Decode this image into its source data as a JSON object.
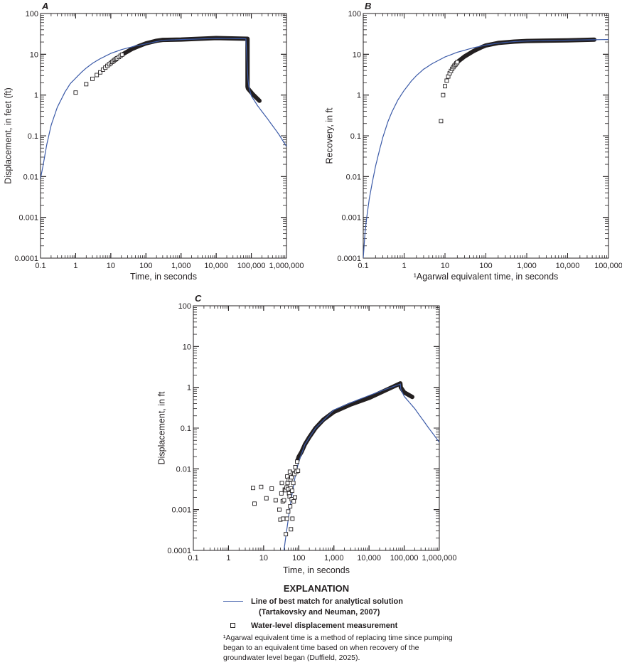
{
  "colors": {
    "model_line": "#3b5aa8",
    "data_marker": "#231f20",
    "axis": "#231f20"
  },
  "chart_data": [
    {
      "panel": "A",
      "type": "scatter",
      "title": "",
      "xlabel": "Time, in seconds",
      "ylabel": "Displacement, in feet (ft)",
      "xscale": "log",
      "yscale": "log",
      "xlim": [
        0.1,
        1000000
      ],
      "ylim": [
        0.0001,
        100
      ],
      "xticks": [
        "0.1",
        "1",
        "10",
        "100",
        "1,000",
        "10,000",
        "100,000",
        "1,000,000"
      ],
      "yticks": [
        "0.0001",
        "0.001",
        "0.01",
        "0.1",
        "1",
        "10",
        "100"
      ],
      "grid": false,
      "series": [
        {
          "name": "Line of best match for analytical solution (Tartakovsky and Neuman, 2007)",
          "kind": "line",
          "x": [
            0.1,
            0.12,
            0.15,
            0.2,
            0.3,
            0.5,
            0.7,
            1,
            1.5,
            2,
            3,
            5,
            10,
            20,
            50,
            100,
            200,
            300,
            1000,
            10000,
            70000,
            80000,
            85000,
            100000,
            150000,
            300000,
            600000,
            1000000
          ],
          "y": [
            0.009,
            0.02,
            0.06,
            0.18,
            0.5,
            1.2,
            1.9,
            2.6,
            3.7,
            4.6,
            6.0,
            7.8,
            10.5,
            13.0,
            16.0,
            18.0,
            20.5,
            22.0,
            23.0,
            24.5,
            24.0,
            2.5,
            1.6,
            0.95,
            0.55,
            0.25,
            0.11,
            0.055
          ]
        },
        {
          "name": "Water-level displacement measurement",
          "kind": "markers",
          "x": [
            1,
            2,
            3,
            4,
            5,
            6,
            7,
            8,
            9,
            10,
            11,
            12,
            13,
            14,
            15,
            17,
            19,
            21
          ],
          "y": [
            1.15,
            1.85,
            2.5,
            3.1,
            3.6,
            4.2,
            4.7,
            5.2,
            5.7,
            6.1,
            6.5,
            6.9,
            7.3,
            7.6,
            8.0,
            8.6,
            9.2,
            9.8
          ]
        },
        {
          "name": "Water-level displacement measurement (dense)",
          "kind": "thick",
          "x": [
            21,
            40,
            70,
            100,
            200,
            300,
            1000,
            10000,
            78000,
            78000,
            80000,
            110000,
            170000
          ],
          "y": [
            9.8,
            13.5,
            16.5,
            18.5,
            21.5,
            22.5,
            23.0,
            25.0,
            24.0,
            1.6,
            1.45,
            1.05,
            0.72
          ]
        }
      ]
    },
    {
      "panel": "B",
      "type": "scatter",
      "title": "",
      "xlabel": "¹Agarwal equivalent time, in seconds",
      "ylabel": "Recovery, in ft",
      "xscale": "log",
      "yscale": "log",
      "xlim": [
        0.1,
        100000
      ],
      "ylim": [
        0.0001,
        100
      ],
      "xticks": [
        "0.1",
        "1",
        "10",
        "100",
        "1,000",
        "10,000",
        "100,000"
      ],
      "yticks": [
        "0.0001",
        "0.001",
        "0.01",
        "0.1",
        "1",
        "10",
        "100"
      ],
      "grid": false,
      "series": [
        {
          "name": "Line of best match for analytical solution (Tartakovsky and Neuman, 2007)",
          "kind": "line",
          "x": [
            0.1,
            0.11,
            0.12,
            0.14,
            0.17,
            0.2,
            0.25,
            0.3,
            0.4,
            0.5,
            0.7,
            1,
            1.5,
            2,
            3,
            5,
            10,
            20,
            50,
            100,
            200,
            500,
            1000,
            10000,
            100000
          ],
          "y": [
            0.0001,
            0.0004,
            0.0009,
            0.0028,
            0.008,
            0.018,
            0.045,
            0.09,
            0.22,
            0.38,
            0.75,
            1.3,
            2.2,
            3.0,
            4.3,
            6.0,
            8.6,
            11.2,
            14.5,
            16.8,
            18.8,
            20.5,
            21.2,
            22.2,
            23.0
          ]
        },
        {
          "name": "Water-level displacement measurement",
          "kind": "markers",
          "x": [
            8,
            9,
            10,
            11,
            12,
            13,
            14,
            15,
            16,
            17,
            18,
            19,
            20
          ],
          "y": [
            0.23,
            1.0,
            1.65,
            2.25,
            2.85,
            3.4,
            3.9,
            4.4,
            4.85,
            5.25,
            5.6,
            6.0,
            6.4
          ]
        },
        {
          "name": "Water-level displacement measurement (dense)",
          "kind": "thick",
          "x": [
            20,
            30,
            50,
            80,
            100,
            200,
            500,
            1000,
            10000,
            45000
          ],
          "y": [
            6.4,
            8.8,
            12.0,
            15.0,
            16.5,
            19.0,
            20.5,
            21.2,
            22.0,
            22.8
          ]
        }
      ]
    },
    {
      "panel": "C",
      "type": "scatter",
      "title": "",
      "xlabel": "Time, in seconds",
      "ylabel": "Displacement, in ft",
      "xscale": "log",
      "yscale": "log",
      "xlim": [
        0.1,
        1000000
      ],
      "ylim": [
        0.0001,
        100
      ],
      "xticks": [
        "0.1",
        "1",
        "10",
        "100",
        "1,000",
        "10,000",
        "100,000",
        "1,000,000"
      ],
      "yticks": [
        "0.0001",
        "0.001",
        "0.01",
        "0.1",
        "1",
        "10",
        "100"
      ],
      "grid": false,
      "series": [
        {
          "name": "Line of best match for analytical solution (Tartakovsky and Neuman, 2007)",
          "kind": "line",
          "x": [
            38,
            45,
            55,
            65,
            80,
            100,
            150,
            300,
            1000,
            5000,
            30000,
            78000,
            80000,
            100000,
            200000,
            500000,
            1000000
          ],
          "y": [
            0.0001,
            0.0003,
            0.001,
            0.0025,
            0.007,
            0.015,
            0.04,
            0.1,
            0.28,
            0.5,
            0.9,
            1.2,
            0.9,
            0.6,
            0.3,
            0.1,
            0.045
          ]
        },
        {
          "name": "Water-level displacement measurement",
          "kind": "markers",
          "x": [
            5,
            5.5,
            8.5,
            12,
            17,
            22,
            28,
            30,
            32,
            33,
            35,
            36,
            38,
            40,
            42,
            43,
            45,
            46,
            47,
            48,
            50,
            50,
            52,
            53,
            55,
            56,
            57,
            58,
            60,
            60,
            62,
            63,
            65,
            66,
            68,
            70,
            72,
            75,
            78,
            80,
            85,
            90,
            95
          ],
          "y": [
            0.0034,
            0.0014,
            0.0036,
            0.0019,
            0.0033,
            0.0017,
            0.001,
            0.00057,
            0.0025,
            0.0045,
            0.0016,
            0.0006,
            0.0017,
            0.0031,
            0.003,
            0.00025,
            0.0035,
            0.0006,
            0.0065,
            0.0045,
            0.0032,
            0.0009,
            0.0054,
            0.0025,
            0.0021,
            0.0085,
            0.0012,
            0.0055,
            0.0033,
            0.00033,
            0.0062,
            0.0018,
            0.0029,
            0.0006,
            0.0078,
            0.0045,
            0.0016,
            0.0075,
            0.002,
            0.011,
            0.0085,
            0.015,
            0.009
          ]
        },
        {
          "name": "Water-level displacement measurement (dense)",
          "kind": "thick",
          "x": [
            90,
            100,
            120,
            150,
            200,
            300,
            500,
            1000,
            3000,
            10000,
            30000,
            78000,
            80000,
            100000,
            170000
          ],
          "y": [
            0.015,
            0.02,
            0.026,
            0.04,
            0.06,
            0.1,
            0.16,
            0.25,
            0.38,
            0.55,
            0.85,
            1.25,
            1.0,
            0.75,
            0.58
          ]
        }
      ]
    }
  ],
  "panels": {
    "A": {
      "letter": "A"
    },
    "B": {
      "letter": "B"
    },
    "C": {
      "letter": "C"
    }
  },
  "legend": {
    "title": "EXPLANATION",
    "line_label_1": "Line of best match for analytical solution",
    "line_label_2": "(Tartakovsky and Neuman, 2007)",
    "marker_label": "Water-level displacement measurement",
    "footnote": "¹Agarwal equivalent time is a method of replacing time since pumping began to an equivalent time based on when recovery of the groundwater level began (Duffield, 2025)."
  }
}
